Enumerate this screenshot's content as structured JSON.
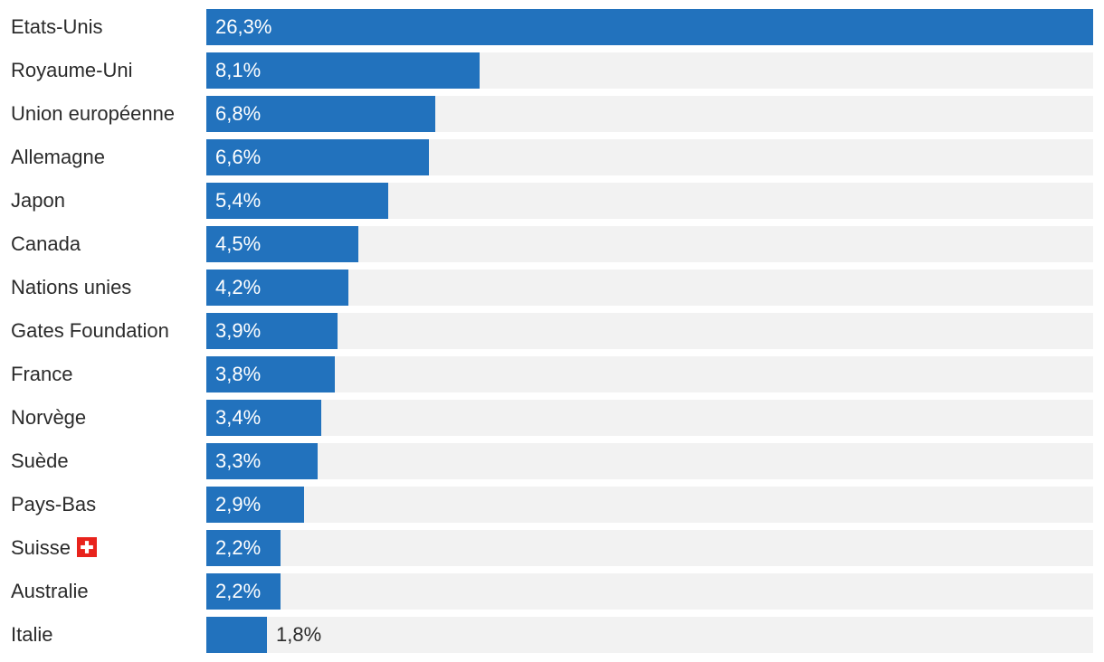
{
  "chart_data": {
    "type": "bar",
    "orientation": "horizontal",
    "categories": [
      "Etats-Unis",
      "Royaume-Uni",
      "Union européenne",
      "Allemagne",
      "Japon",
      "Canada",
      "Nations unies",
      "Gates Foundation",
      "France",
      "Norvège",
      "Suède",
      "Pays-Bas",
      "Suisse",
      "Australie",
      "Italie"
    ],
    "values": [
      26.3,
      8.1,
      6.8,
      6.6,
      5.4,
      4.5,
      4.2,
      3.9,
      3.8,
      3.4,
      3.3,
      2.9,
      2.2,
      2.2,
      1.8
    ],
    "value_labels": [
      "26,3%",
      "8,1%",
      "6,8%",
      "6,6%",
      "5,4%",
      "4,5%",
      "4,2%",
      "3,9%",
      "3,8%",
      "3,4%",
      "3,3%",
      "2,9%",
      "2,2%",
      "2,2%",
      "1,8%"
    ],
    "flag_categories": {
      "Suisse": "swiss-flag-icon"
    },
    "xlim": [
      0,
      26.3
    ],
    "grid": false,
    "legend": "none",
    "title": "",
    "xlabel": "",
    "ylabel": ""
  },
  "colors": {
    "bar": "#2272bd",
    "track": "#f2f2f2",
    "text": "#2b2b2b",
    "label_inside": "#ffffff",
    "flag_red": "#e8231c"
  }
}
